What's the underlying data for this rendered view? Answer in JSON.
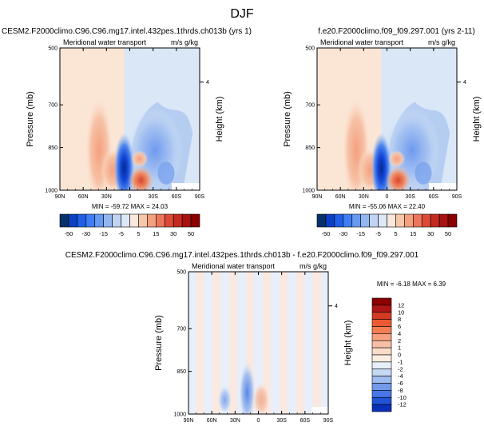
{
  "figure_title": "DJF",
  "colors": {
    "axis": "#000000",
    "neg_deep": "#08306b",
    "pos_deep": "#8b0000",
    "frame": "#000000"
  },
  "chart_data": [
    {
      "type": "heatmap",
      "panel": "top-left",
      "title": "CESM2.F2000climo.C96.C96.mg17.intel.432pes.1thrds.ch013b (yrs 1)",
      "left_label": "Meridional water transport",
      "right_label": "m/s g/kg",
      "ylabel": "Pressure (mb)",
      "ylabel_right": "Height (km)",
      "x_ticks": [
        "90N",
        "60N",
        "30N",
        "0",
        "30S",
        "60S",
        "90S"
      ],
      "y_ticks": [
        "500",
        "700",
        "850",
        "1000"
      ],
      "height_ticks": [
        "4"
      ],
      "xlim": [
        90,
        -90
      ],
      "ylim": [
        1000,
        500
      ],
      "stats_text": "MIN = -59.72   MAX =  24.03",
      "min": -59.72,
      "max": 24.03,
      "colorbar": {
        "orientation": "horizontal",
        "levels": [
          "-50",
          "-30",
          "-15",
          "-5",
          "5",
          "15",
          "30",
          "50"
        ],
        "colors": [
          "#08306b",
          "#0b3fc4",
          "#1f5fe6",
          "#3e7ef2",
          "#6699f2",
          "#93b6f0",
          "#bfd4f3",
          "#dde8f6",
          "#fbe8dc",
          "#f7c7a9",
          "#f3a07f",
          "#ec765b",
          "#dc4a35",
          "#c42a1f",
          "#a81212",
          "#8b0000"
        ]
      }
    },
    {
      "type": "heatmap",
      "panel": "top-right",
      "title": "f.e20.F2000climo.f09_f09.297.001 (yrs 2-11)",
      "left_label": "Meridional water transport",
      "right_label": "m/s g/kg",
      "ylabel": "Pressure (mb)",
      "ylabel_right": "Height (km)",
      "x_ticks": [
        "90N",
        "60N",
        "30N",
        "0",
        "30S",
        "60S",
        "90S"
      ],
      "y_ticks": [
        "500",
        "700",
        "850",
        "1000"
      ],
      "height_ticks": [
        "4"
      ],
      "xlim": [
        90,
        -90
      ],
      "ylim": [
        1000,
        500
      ],
      "stats_text": "MIN = -55.06   MAX =  22.40",
      "min": -55.06,
      "max": 22.4,
      "colorbar": {
        "orientation": "horizontal",
        "levels": [
          "-50",
          "-30",
          "-15",
          "-5",
          "5",
          "15",
          "30",
          "50"
        ],
        "colors": [
          "#08306b",
          "#0b3fc4",
          "#1f5fe6",
          "#3e7ef2",
          "#6699f2",
          "#93b6f0",
          "#bfd4f3",
          "#dde8f6",
          "#fbe8dc",
          "#f7c7a9",
          "#f3a07f",
          "#ec765b",
          "#dc4a35",
          "#c42a1f",
          "#a81212",
          "#8b0000"
        ]
      }
    },
    {
      "type": "heatmap",
      "panel": "bottom",
      "title": "CESM2.F2000climo.C96.C96.mg17.intel.432pes.1thrds.ch013b - f.e20.F2000climo.f09_f09.297.001",
      "left_label": "Meridional water transport",
      "right_label": "m/s g/kg",
      "ylabel": "Pressure (mb)",
      "ylabel_right": "Height (km)",
      "x_ticks": [
        "90N",
        "60N",
        "30N",
        "0",
        "30S",
        "60S",
        "90S"
      ],
      "y_ticks": [
        "500",
        "700",
        "850",
        "1000"
      ],
      "height_ticks": [
        "4"
      ],
      "xlim": [
        90,
        -90
      ],
      "ylim": [
        1000,
        500
      ],
      "stats_text": "MIN =  -6.18   MAX =   6.39",
      "min": -6.18,
      "max": 6.39,
      "colorbar": {
        "orientation": "vertical",
        "levels": [
          "12",
          "10",
          "8",
          "6",
          "4",
          "2",
          "1",
          "0",
          "-1",
          "-2",
          "-4",
          "-6",
          "-8",
          "-10",
          "-12"
        ],
        "colors": [
          "#8b0000",
          "#b01515",
          "#d43a22",
          "#ec5a34",
          "#f47e54",
          "#f6a07e",
          "#f7c0a4",
          "#fadcc8",
          "#fbeee3",
          "#e6effa",
          "#c5d8f4",
          "#9fbcef",
          "#7399eb",
          "#4876e6",
          "#2153d8",
          "#0a2fb8"
        ]
      }
    }
  ]
}
